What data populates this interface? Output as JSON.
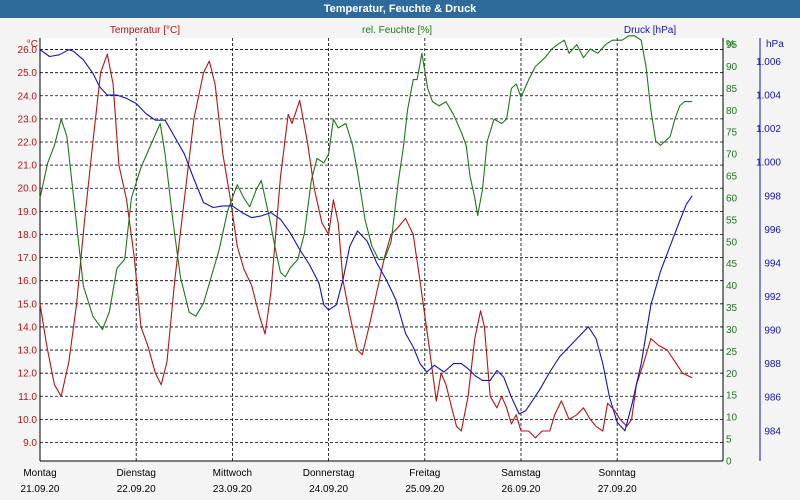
{
  "window": {
    "title": "Temperatur, Feuchte & Druck"
  },
  "colors": {
    "temperature": "#b41414",
    "humidity": "#1a7a1a",
    "pressure": "#1414b4",
    "titlebar": "#2f6a9c",
    "background": "#f4f4f4",
    "grid": "#000000"
  },
  "chart_data": {
    "type": "line",
    "title": "Temperatur, Feuchte & Druck",
    "grid": true,
    "axes": {
      "left": {
        "label": "Temperatur [°C]",
        "unit": "°C",
        "range": [
          8.2,
          26.5
        ],
        "ticks": [
          "9.0",
          "10.0",
          "11.0",
          "12.0",
          "13.0",
          "14.0",
          "15.0",
          "16.0",
          "17.0",
          "18.0",
          "19.0",
          "20.0",
          "21.0",
          "22.0",
          "23.0",
          "24.0",
          "25.0",
          "26.0"
        ]
      },
      "middle": {
        "label": "rel. Feuchte [%]",
        "unit": "%",
        "range": [
          0,
          96.5
        ],
        "ticks": [
          "0",
          "5",
          "10",
          "15",
          "20",
          "25",
          "30",
          "35",
          "40",
          "45",
          "50",
          "55",
          "60",
          "65",
          "70",
          "75",
          "80",
          "85",
          "90",
          "95"
        ]
      },
      "right": {
        "label": "Druck [hPa]",
        "unit": "hPa",
        "range": [
          982.2,
          1007.4
        ],
        "ticks": [
          "984",
          "986",
          "988",
          "990",
          "992",
          "994",
          "996",
          "998",
          "1.000",
          "1.002",
          "1.004",
          "1.006"
        ]
      },
      "x": {
        "range": [
          0,
          7.1
        ],
        "tick_labels": [
          {
            "day": "Montag",
            "date": "21.09.20"
          },
          {
            "day": "Dienstag",
            "date": "22.09.20"
          },
          {
            "day": "Mittwoch",
            "date": "23.09.20"
          },
          {
            "day": "Donnerstag",
            "date": "24.09.20"
          },
          {
            "day": "Freitag",
            "date": "25.09.20"
          },
          {
            "day": "Samstag",
            "date": "26.09.20"
          },
          {
            "day": "Sonntag",
            "date": "27.09.20"
          }
        ]
      }
    },
    "series": [
      {
        "name": "Temperatur [°C]",
        "axis": "left",
        "points": [
          [
            0,
            15.0
          ],
          [
            0.07,
            13.2
          ],
          [
            0.15,
            11.5
          ],
          [
            0.22,
            11.0
          ],
          [
            0.3,
            12.5
          ],
          [
            0.38,
            15.0
          ],
          [
            0.46,
            18.5
          ],
          [
            0.55,
            22.0
          ],
          [
            0.63,
            25.0
          ],
          [
            0.7,
            25.8
          ],
          [
            0.76,
            24.5
          ],
          [
            0.82,
            21.0
          ],
          [
            0.9,
            19.5
          ],
          [
            0.98,
            17.0
          ],
          [
            1.05,
            14.0
          ],
          [
            1.12,
            13.2
          ],
          [
            1.2,
            12.0
          ],
          [
            1.26,
            11.5
          ],
          [
            1.32,
            12.5
          ],
          [
            1.4,
            16.0
          ],
          [
            1.5,
            19.5
          ],
          [
            1.6,
            23.0
          ],
          [
            1.7,
            25.0
          ],
          [
            1.76,
            25.5
          ],
          [
            1.82,
            24.5
          ],
          [
            1.9,
            21.5
          ],
          [
            1.98,
            19.5
          ],
          [
            2.05,
            17.5
          ],
          [
            2.12,
            16.5
          ],
          [
            2.2,
            15.8
          ],
          [
            2.28,
            14.5
          ],
          [
            2.34,
            13.7
          ],
          [
            2.4,
            15.5
          ],
          [
            2.5,
            20.5
          ],
          [
            2.58,
            23.2
          ],
          [
            2.62,
            22.8
          ],
          [
            2.7,
            23.8
          ],
          [
            2.78,
            22.0
          ],
          [
            2.85,
            20.0
          ],
          [
            2.93,
            18.5
          ],
          [
            3.0,
            18.0
          ],
          [
            3.05,
            19.5
          ],
          [
            3.1,
            18.5
          ],
          [
            3.15,
            16.0
          ],
          [
            3.22,
            14.5
          ],
          [
            3.3,
            13.0
          ],
          [
            3.35,
            12.8
          ],
          [
            3.42,
            14.0
          ],
          [
            3.5,
            15.5
          ],
          [
            3.58,
            17.0
          ],
          [
            3.65,
            18.0
          ],
          [
            3.72,
            18.3
          ],
          [
            3.8,
            18.7
          ],
          [
            3.88,
            18.0
          ],
          [
            3.95,
            16.0
          ],
          [
            4.0,
            14.5
          ],
          [
            4.05,
            13.0
          ],
          [
            4.12,
            10.8
          ],
          [
            4.17,
            12.0
          ],
          [
            4.22,
            11.5
          ],
          [
            4.28,
            10.5
          ],
          [
            4.33,
            9.7
          ],
          [
            4.38,
            9.5
          ],
          [
            4.45,
            11.0
          ],
          [
            4.52,
            13.5
          ],
          [
            4.58,
            14.7
          ],
          [
            4.62,
            14.0
          ],
          [
            4.68,
            11.0
          ],
          [
            4.75,
            10.5
          ],
          [
            4.8,
            11.0
          ],
          [
            4.85,
            10.5
          ],
          [
            4.9,
            9.8
          ],
          [
            4.95,
            10.2
          ],
          [
            5.0,
            9.5
          ],
          [
            5.08,
            9.5
          ],
          [
            5.15,
            9.2
          ],
          [
            5.22,
            9.5
          ],
          [
            5.3,
            9.5
          ],
          [
            5.35,
            10.2
          ],
          [
            5.42,
            10.8
          ],
          [
            5.5,
            10.0
          ],
          [
            5.58,
            10.2
          ],
          [
            5.65,
            10.5
          ],
          [
            5.72,
            10.0
          ],
          [
            5.78,
            9.7
          ],
          [
            5.85,
            9.5
          ],
          [
            5.9,
            10.7
          ],
          [
            5.97,
            10.4
          ],
          [
            6.03,
            10.0
          ],
          [
            6.1,
            9.7
          ],
          [
            6.15,
            10.0
          ],
          [
            6.2,
            11.5
          ],
          [
            6.28,
            12.5
          ],
          [
            6.35,
            13.5
          ],
          [
            6.43,
            13.2
          ],
          [
            6.52,
            13.0
          ],
          [
            6.6,
            12.5
          ],
          [
            6.68,
            12.0
          ],
          [
            6.78,
            11.8
          ]
        ]
      },
      {
        "name": "rel. Feuchte [%]",
        "axis": "middle",
        "points": [
          [
            0,
            60
          ],
          [
            0.08,
            68
          ],
          [
            0.15,
            72
          ],
          [
            0.22,
            78
          ],
          [
            0.28,
            74
          ],
          [
            0.35,
            60
          ],
          [
            0.45,
            40
          ],
          [
            0.55,
            33
          ],
          [
            0.65,
            30
          ],
          [
            0.72,
            34
          ],
          [
            0.8,
            44
          ],
          [
            0.88,
            46
          ],
          [
            0.95,
            60
          ],
          [
            1.05,
            67
          ],
          [
            1.15,
            72
          ],
          [
            1.25,
            77
          ],
          [
            1.3,
            70
          ],
          [
            1.38,
            55
          ],
          [
            1.46,
            42
          ],
          [
            1.55,
            34
          ],
          [
            1.62,
            33
          ],
          [
            1.7,
            36
          ],
          [
            1.78,
            42
          ],
          [
            1.86,
            48
          ],
          [
            1.95,
            57
          ],
          [
            2.05,
            63
          ],
          [
            2.12,
            60
          ],
          [
            2.18,
            58
          ],
          [
            2.25,
            62
          ],
          [
            2.3,
            64
          ],
          [
            2.38,
            56
          ],
          [
            2.45,
            48
          ],
          [
            2.5,
            43
          ],
          [
            2.55,
            42
          ],
          [
            2.6,
            44
          ],
          [
            2.68,
            46
          ],
          [
            2.75,
            52
          ],
          [
            2.82,
            64
          ],
          [
            2.88,
            69
          ],
          [
            2.95,
            68
          ],
          [
            3.0,
            70
          ],
          [
            3.05,
            78
          ],
          [
            3.1,
            76
          ],
          [
            3.18,
            77
          ],
          [
            3.25,
            72
          ],
          [
            3.3,
            66
          ],
          [
            3.38,
            55
          ],
          [
            3.45,
            49
          ],
          [
            3.52,
            46
          ],
          [
            3.58,
            46
          ],
          [
            3.65,
            50
          ],
          [
            3.72,
            63
          ],
          [
            3.78,
            72
          ],
          [
            3.82,
            80
          ],
          [
            3.88,
            87
          ],
          [
            3.92,
            87
          ],
          [
            3.97,
            93
          ],
          [
            4.03,
            85
          ],
          [
            4.08,
            82
          ],
          [
            4.15,
            81
          ],
          [
            4.22,
            82
          ],
          [
            4.3,
            79
          ],
          [
            4.38,
            75
          ],
          [
            4.43,
            72
          ],
          [
            4.47,
            65
          ],
          [
            4.52,
            60
          ],
          [
            4.55,
            56
          ],
          [
            4.6,
            62
          ],
          [
            4.65,
            73
          ],
          [
            4.72,
            78
          ],
          [
            4.8,
            77
          ],
          [
            4.85,
            78
          ],
          [
            4.9,
            85
          ],
          [
            4.95,
            86
          ],
          [
            5.0,
            83
          ],
          [
            5.08,
            87
          ],
          [
            5.15,
            90
          ],
          [
            5.25,
            92
          ],
          [
            5.32,
            94
          ],
          [
            5.38,
            95
          ],
          [
            5.45,
            96
          ],
          [
            5.5,
            93
          ],
          [
            5.58,
            95
          ],
          [
            5.65,
            92
          ],
          [
            5.72,
            94
          ],
          [
            5.8,
            93
          ],
          [
            5.88,
            95
          ],
          [
            5.95,
            96
          ],
          [
            6.05,
            96
          ],
          [
            6.12,
            97
          ],
          [
            6.18,
            97
          ],
          [
            6.25,
            96
          ],
          [
            6.3,
            90
          ],
          [
            6.35,
            80
          ],
          [
            6.4,
            73
          ],
          [
            6.45,
            72
          ],
          [
            6.5,
            73
          ],
          [
            6.55,
            74
          ],
          [
            6.6,
            78
          ],
          [
            6.65,
            81
          ],
          [
            6.7,
            82
          ],
          [
            6.78,
            82
          ]
        ]
      },
      {
        "name": "Druck [hPa]",
        "axis": "right",
        "points": [
          [
            0,
            1006.7
          ],
          [
            0.1,
            1006.3
          ],
          [
            0.2,
            1006.4
          ],
          [
            0.3,
            1006.7
          ],
          [
            0.35,
            1006.6
          ],
          [
            0.45,
            1006.1
          ],
          [
            0.55,
            1005.3
          ],
          [
            0.62,
            1004.5
          ],
          [
            0.7,
            1004.0
          ],
          [
            0.8,
            1004.0
          ],
          [
            0.9,
            1003.8
          ],
          [
            1.0,
            1003.5
          ],
          [
            1.1,
            1002.9
          ],
          [
            1.2,
            1002.5
          ],
          [
            1.3,
            1002.5
          ],
          [
            1.4,
            1001.5
          ],
          [
            1.5,
            1000.5
          ],
          [
            1.6,
            999.0
          ],
          [
            1.7,
            997.6
          ],
          [
            1.8,
            997.3
          ],
          [
            1.9,
            997.4
          ],
          [
            2.0,
            997.4
          ],
          [
            2.1,
            997.0
          ],
          [
            2.2,
            996.7
          ],
          [
            2.3,
            996.8
          ],
          [
            2.4,
            997.0
          ],
          [
            2.5,
            996.6
          ],
          [
            2.6,
            995.8
          ],
          [
            2.7,
            994.8
          ],
          [
            2.8,
            993.9
          ],
          [
            2.9,
            992.8
          ],
          [
            2.95,
            991.5
          ],
          [
            3.0,
            991.2
          ],
          [
            3.08,
            991.5
          ],
          [
            3.15,
            993.0
          ],
          [
            3.22,
            995.0
          ],
          [
            3.3,
            995.9
          ],
          [
            3.4,
            995.3
          ],
          [
            3.5,
            994.0
          ],
          [
            3.6,
            993.0
          ],
          [
            3.7,
            991.8
          ],
          [
            3.8,
            989.8
          ],
          [
            3.88,
            989.0
          ],
          [
            3.95,
            988.0
          ],
          [
            4.02,
            987.5
          ],
          [
            4.1,
            987.9
          ],
          [
            4.2,
            987.5
          ],
          [
            4.3,
            988.0
          ],
          [
            4.38,
            988.0
          ],
          [
            4.45,
            987.7
          ],
          [
            4.52,
            987.3
          ],
          [
            4.6,
            987.0
          ],
          [
            4.68,
            987.0
          ],
          [
            4.75,
            987.6
          ],
          [
            4.82,
            987.2
          ],
          [
            4.9,
            986.0
          ],
          [
            4.98,
            985.0
          ],
          [
            5.05,
            985.2
          ],
          [
            5.12,
            985.8
          ],
          [
            5.2,
            986.5
          ],
          [
            5.3,
            987.5
          ],
          [
            5.4,
            988.4
          ],
          [
            5.5,
            989.0
          ],
          [
            5.6,
            989.6
          ],
          [
            5.7,
            990.2
          ],
          [
            5.78,
            989.5
          ],
          [
            5.85,
            988.0
          ],
          [
            5.92,
            986.0
          ],
          [
            6.0,
            984.5
          ],
          [
            6.08,
            984.0
          ],
          [
            6.15,
            985.5
          ],
          [
            6.25,
            988.0
          ],
          [
            6.35,
            991.5
          ],
          [
            6.45,
            993.5
          ],
          [
            6.55,
            995.0
          ],
          [
            6.65,
            996.5
          ],
          [
            6.72,
            997.5
          ],
          [
            6.78,
            998.0
          ]
        ]
      }
    ]
  }
}
